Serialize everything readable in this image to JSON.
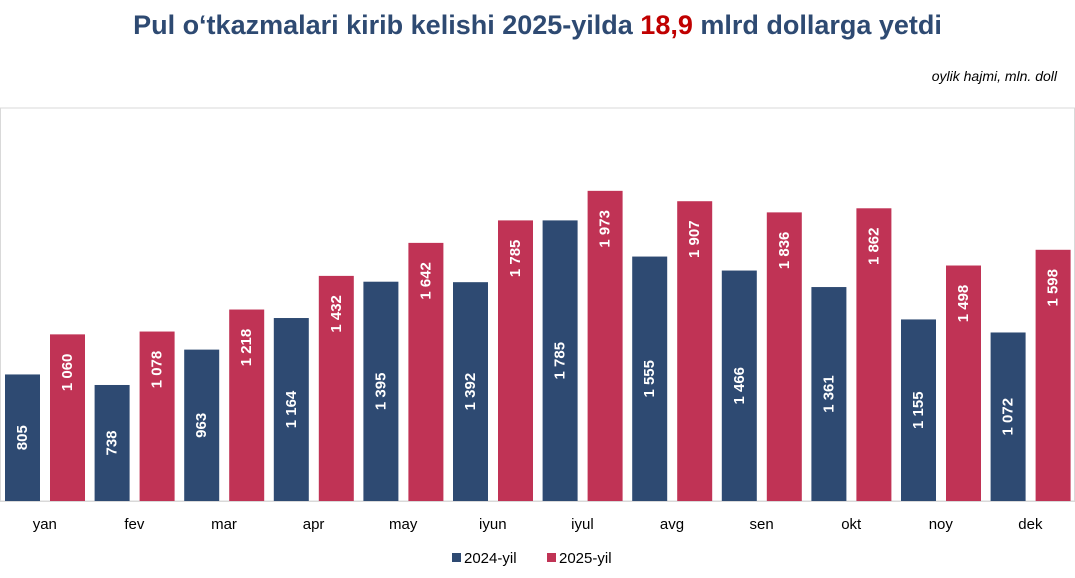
{
  "title": {
    "before": "Pul o‘tkazmalari kirib kelishi 2025-yilda ",
    "highlight": "18,9",
    "after": " mlrd dollarga yetdi"
  },
  "unit_note": "oylik hajmi, mln. doll",
  "colors": {
    "s2024": "#2e4a72",
    "s2025": "#c03355",
    "title": "#2e4a72",
    "highlight": "#c00000"
  },
  "chart_data": {
    "type": "bar",
    "title": "Pul o‘tkazmalari kirib kelishi 2025-yilda 18,9 mlrd dollarga yetdi",
    "ylabel": "oylik hajmi, mln. doll",
    "categories": [
      "yan",
      "fev",
      "mar",
      "apr",
      "may",
      "iyun",
      "iyul",
      "avg",
      "sen",
      "okt",
      "noy",
      "dek"
    ],
    "series": [
      {
        "name": "2024-yil",
        "values": [
          805,
          738,
          963,
          1164,
          1395,
          1392,
          1785,
          1555,
          1466,
          1361,
          1155,
          1072
        ],
        "labels": [
          "805",
          "738",
          "963",
          "1 164",
          "1 395",
          "1 392",
          "1 785",
          "1 555",
          "1 466",
          "1 361",
          "1 155",
          "1 072"
        ]
      },
      {
        "name": "2025-yil",
        "values": [
          1060,
          1078,
          1218,
          1432,
          1642,
          1785,
          1973,
          1907,
          1836,
          1862,
          1498,
          1598
        ],
        "labels": [
          "1 060",
          "1 078",
          "1 218",
          "1 432",
          "1 642",
          "1 785",
          "1 973",
          "1 907",
          "1 836",
          "1 862",
          "1 498",
          "1 598"
        ]
      }
    ],
    "ylim": [
      0,
      2500
    ],
    "grid": false,
    "legend": "bottom-center"
  }
}
